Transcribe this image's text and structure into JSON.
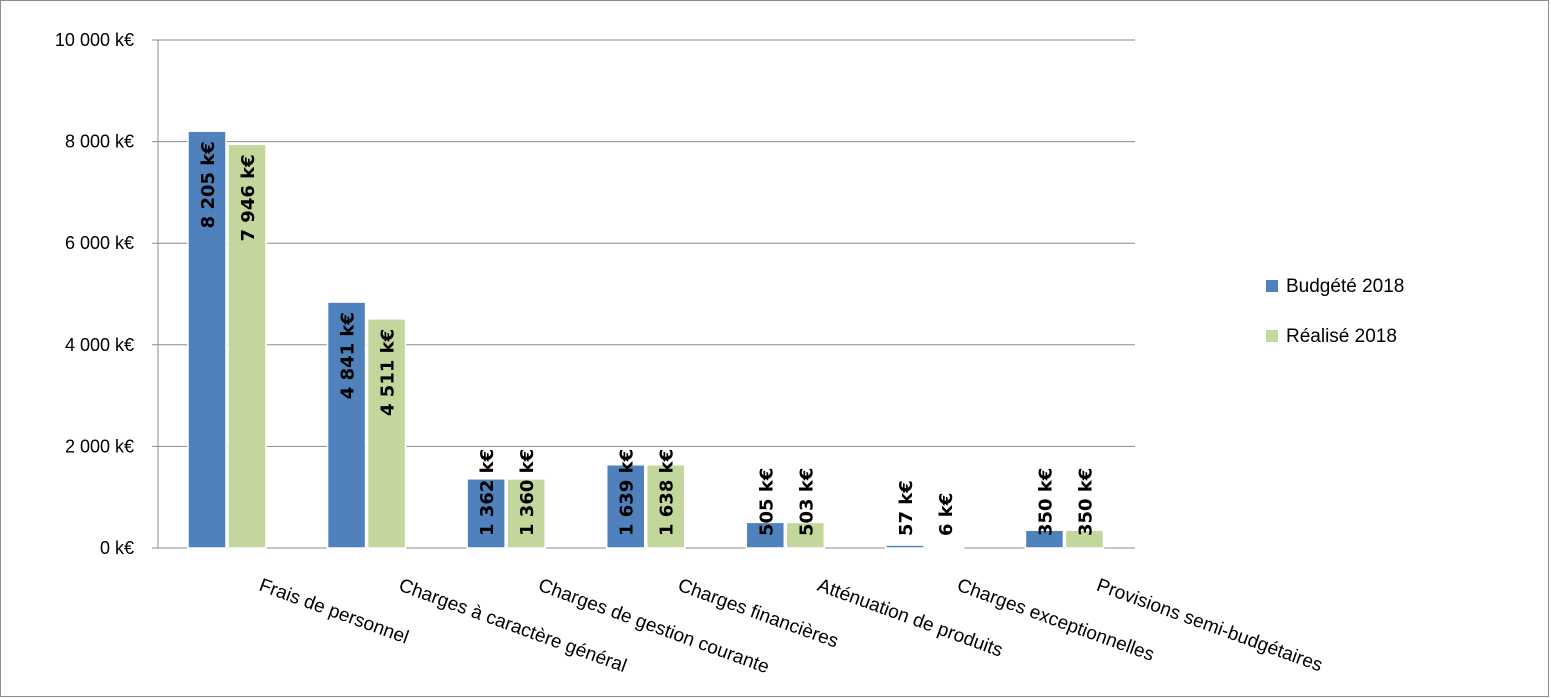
{
  "chart_data": {
    "type": "bar",
    "categories": [
      "Frais de personnel",
      "Charges à caractère général",
      "Charges de gestion courante",
      "Charges financières",
      "Atténuation de produits",
      "Charges exceptionnelles",
      "Provisions semi-budgétaires"
    ],
    "series": [
      {
        "name": "Budgété 2018",
        "color": "#4f81bd",
        "values": [
          8205,
          4841,
          1362,
          1639,
          505,
          57,
          350
        ],
        "labels": [
          "8 205 k€",
          "4 841 k€",
          "1 362 k€",
          "1 639 k€",
          "505 k€",
          "57 k€",
          "350 k€"
        ]
      },
      {
        "name": "Réalisé 2018",
        "color": "#c3d69b",
        "values": [
          7946,
          4511,
          1360,
          1638,
          503,
          6,
          350
        ],
        "labels": [
          "7 946 k€",
          "4 511 k€",
          "1 360 k€",
          "1 638 k€",
          "503 k€",
          "6 k€",
          "350 k€"
        ]
      }
    ],
    "ylim": [
      0,
      10000
    ],
    "yticks": [
      0,
      2000,
      4000,
      6000,
      8000,
      10000
    ],
    "ytick_labels": [
      "0 k€",
      "2 000 k€",
      "4 000 k€",
      "6 000 k€",
      "8 000 k€",
      "10 000 k€"
    ],
    "grid": true,
    "legend_position": "right",
    "title": "",
    "xlabel": "",
    "ylabel": ""
  }
}
